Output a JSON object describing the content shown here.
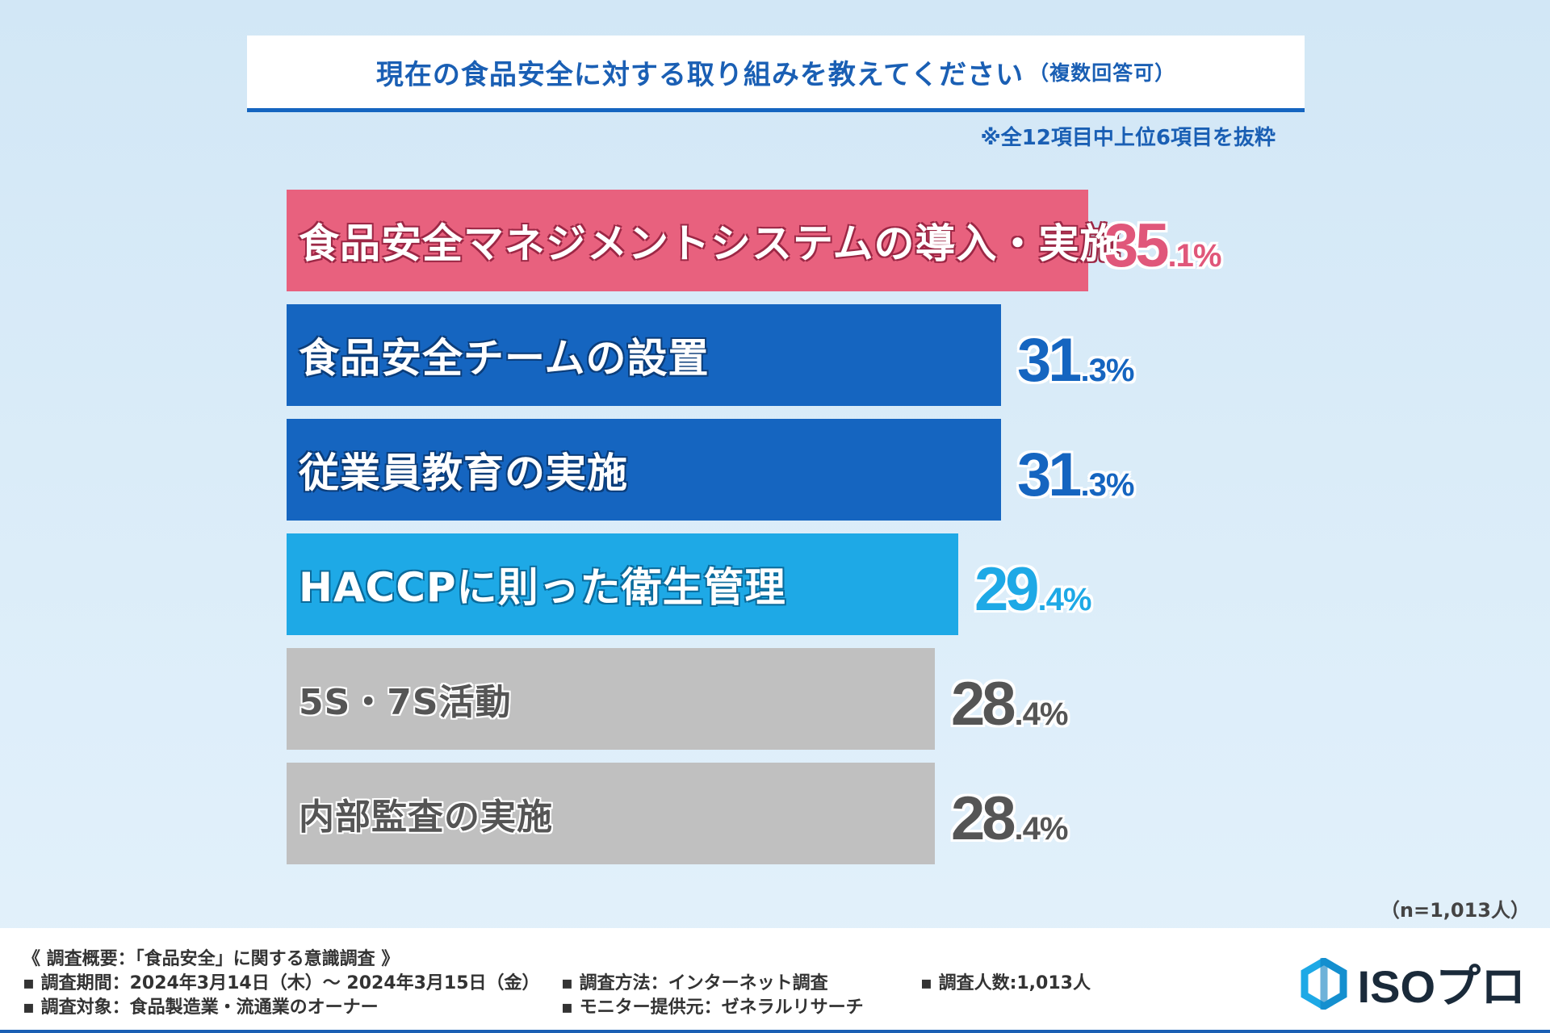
{
  "title": {
    "main": "現在の食品安全に対する取り組みを教えてください",
    "sub": "（複数回答可）"
  },
  "note": "※全12項目中上位6項目を抜粋",
  "chart_data": {
    "type": "bar",
    "orientation": "horizontal",
    "title": "現在の食品安全に対する取り組みを教えてください（複数回答可）",
    "unit": "%",
    "categories": [
      "食品安全マネジメントシステムの導入・実施",
      "食品安全チームの設置",
      "従業員教育の実施",
      "HACCPに則った衛生管理",
      "5S・7S活動",
      "内部監査の実施"
    ],
    "values": [
      35.1,
      31.3,
      31.3,
      29.4,
      28.4,
      28.4
    ],
    "value_labels": [
      {
        "int": "35",
        "dec": ".1%"
      },
      {
        "int": "31",
        "dec": ".3%"
      },
      {
        "int": "31",
        "dec": ".3%"
      },
      {
        "int": "29",
        "dec": ".4%"
      },
      {
        "int": "28",
        "dec": ".4%"
      },
      {
        "int": "28",
        "dec": ".4%"
      }
    ],
    "bar_colors": [
      "#e8617e",
      "#1565c0",
      "#1565c0",
      "#1ea9e6",
      "#c0c0c0",
      "#c0c0c0"
    ],
    "value_colors": [
      "#e0577a",
      "#1565c0",
      "#1565c0",
      "#1ea9e6",
      "#555555",
      "#555555"
    ],
    "label_styles": [
      "pink",
      "blue",
      "blue",
      "cyan",
      "grey",
      "grey"
    ],
    "xlim": [
      0,
      50
    ]
  },
  "sample_size": "（n=1,013人）",
  "footer": {
    "heading": "《 調査概要：「食品安全」に関する意識調査 》",
    "period": "調査期間：2024年3月14日（木）～ 2024年3月15日（金）",
    "target": "調査対象：食品製造業・流通業のオーナー",
    "method": "調査方法：インターネット調査",
    "provider": "モニター提供元：ゼネラルリサーチ",
    "count": "調査人数:1,013人"
  },
  "logo": {
    "text": "ISOプロ",
    "icon": "hexagon-logo-icon",
    "color": "#1ea9e6"
  }
}
